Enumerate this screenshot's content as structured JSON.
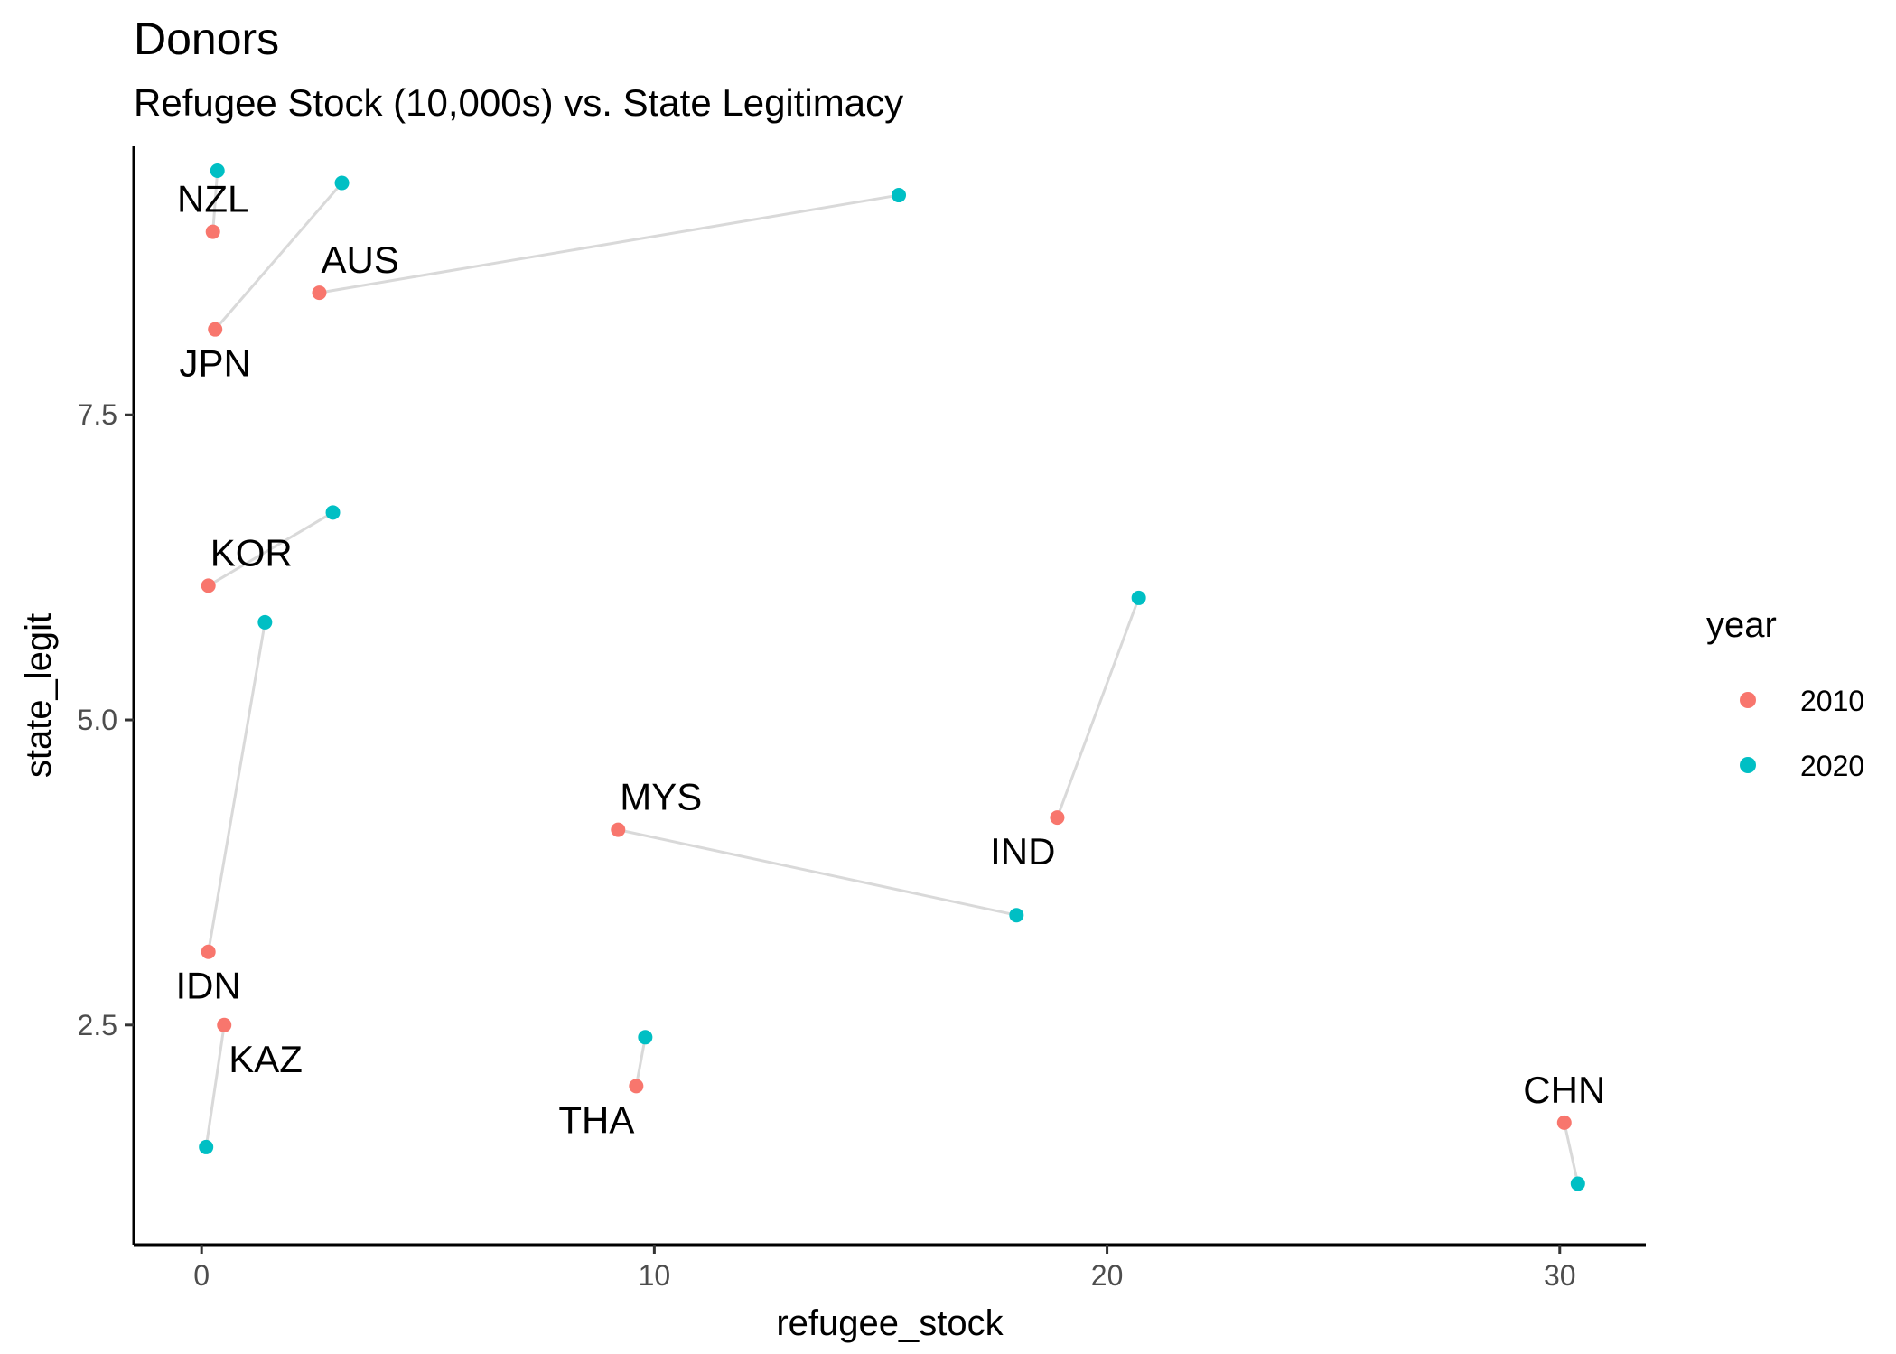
{
  "chart_data": {
    "type": "scatter",
    "title": "Donors",
    "subtitle": "Refugee Stock (10,000s) vs. State Legitimacy",
    "xlabel": "refugee_stock",
    "ylabel": "state_legit",
    "xlim": [
      -1.5,
      31.9
    ],
    "ylim": [
      0.7,
      9.7
    ],
    "x_ticks": [
      {
        "value": 0,
        "label": "0"
      },
      {
        "value": 10,
        "label": "10"
      },
      {
        "value": 20,
        "label": "20"
      },
      {
        "value": 30,
        "label": "30"
      }
    ],
    "y_ticks": [
      {
        "value": 2.5,
        "label": "2.5"
      },
      {
        "value": 5.0,
        "label": "5.0"
      },
      {
        "value": 7.5,
        "label": "7.5"
      }
    ],
    "grid": false,
    "legend": {
      "title": "year",
      "position": "right",
      "entries": [
        {
          "label": "2010",
          "color": "#f8766d"
        },
        {
          "label": "2020",
          "color": "#00bfc4"
        }
      ]
    },
    "connector_color": "#d9d9d9",
    "countries": [
      {
        "code": "NZL",
        "x2010": 0.25,
        "y2010": 9.0,
        "x2020": 0.35,
        "y2020": 9.5,
        "label_anchor": "2010",
        "label_pos": "above"
      },
      {
        "code": "JPN",
        "x2010": 0.3,
        "y2010": 8.2,
        "x2020": 3.1,
        "y2020": 9.4,
        "label_anchor": "2010",
        "label_pos": "below"
      },
      {
        "code": "AUS",
        "x2010": 2.6,
        "y2010": 8.5,
        "x2020": 15.4,
        "y2020": 9.3,
        "label_anchor": "2010",
        "label_pos": "above-right"
      },
      {
        "code": "KOR",
        "x2010": 0.15,
        "y2010": 6.1,
        "x2020": 2.9,
        "y2020": 6.7,
        "label_anchor": "2010",
        "label_pos": "above-right"
      },
      {
        "code": "IDN",
        "x2010": 0.15,
        "y2010": 3.1,
        "x2020": 1.4,
        "y2020": 5.8,
        "label_anchor": "2010",
        "label_pos": "below"
      },
      {
        "code": "KAZ",
        "x2010": 0.5,
        "y2010": 2.5,
        "x2020": 0.1,
        "y2020": 1.5,
        "label_anchor": "2010",
        "label_pos": "below-right"
      },
      {
        "code": "THA",
        "x2010": 9.6,
        "y2010": 2.0,
        "x2020": 9.8,
        "y2020": 2.4,
        "label_anchor": "2010",
        "label_pos": "below-left"
      },
      {
        "code": "MYS",
        "x2010": 9.2,
        "y2010": 4.1,
        "x2020": 18.0,
        "y2020": 3.4,
        "label_anchor": "2010",
        "label_pos": "above-right"
      },
      {
        "code": "IND",
        "x2010": 18.9,
        "y2010": 4.2,
        "x2020": 20.7,
        "y2020": 6.0,
        "label_anchor": "2010",
        "label_pos": "below-left"
      },
      {
        "code": "CHN",
        "x2010": 30.1,
        "y2010": 1.7,
        "x2020": 30.4,
        "y2020": 1.2,
        "label_anchor": "2010",
        "label_pos": "above"
      }
    ]
  }
}
